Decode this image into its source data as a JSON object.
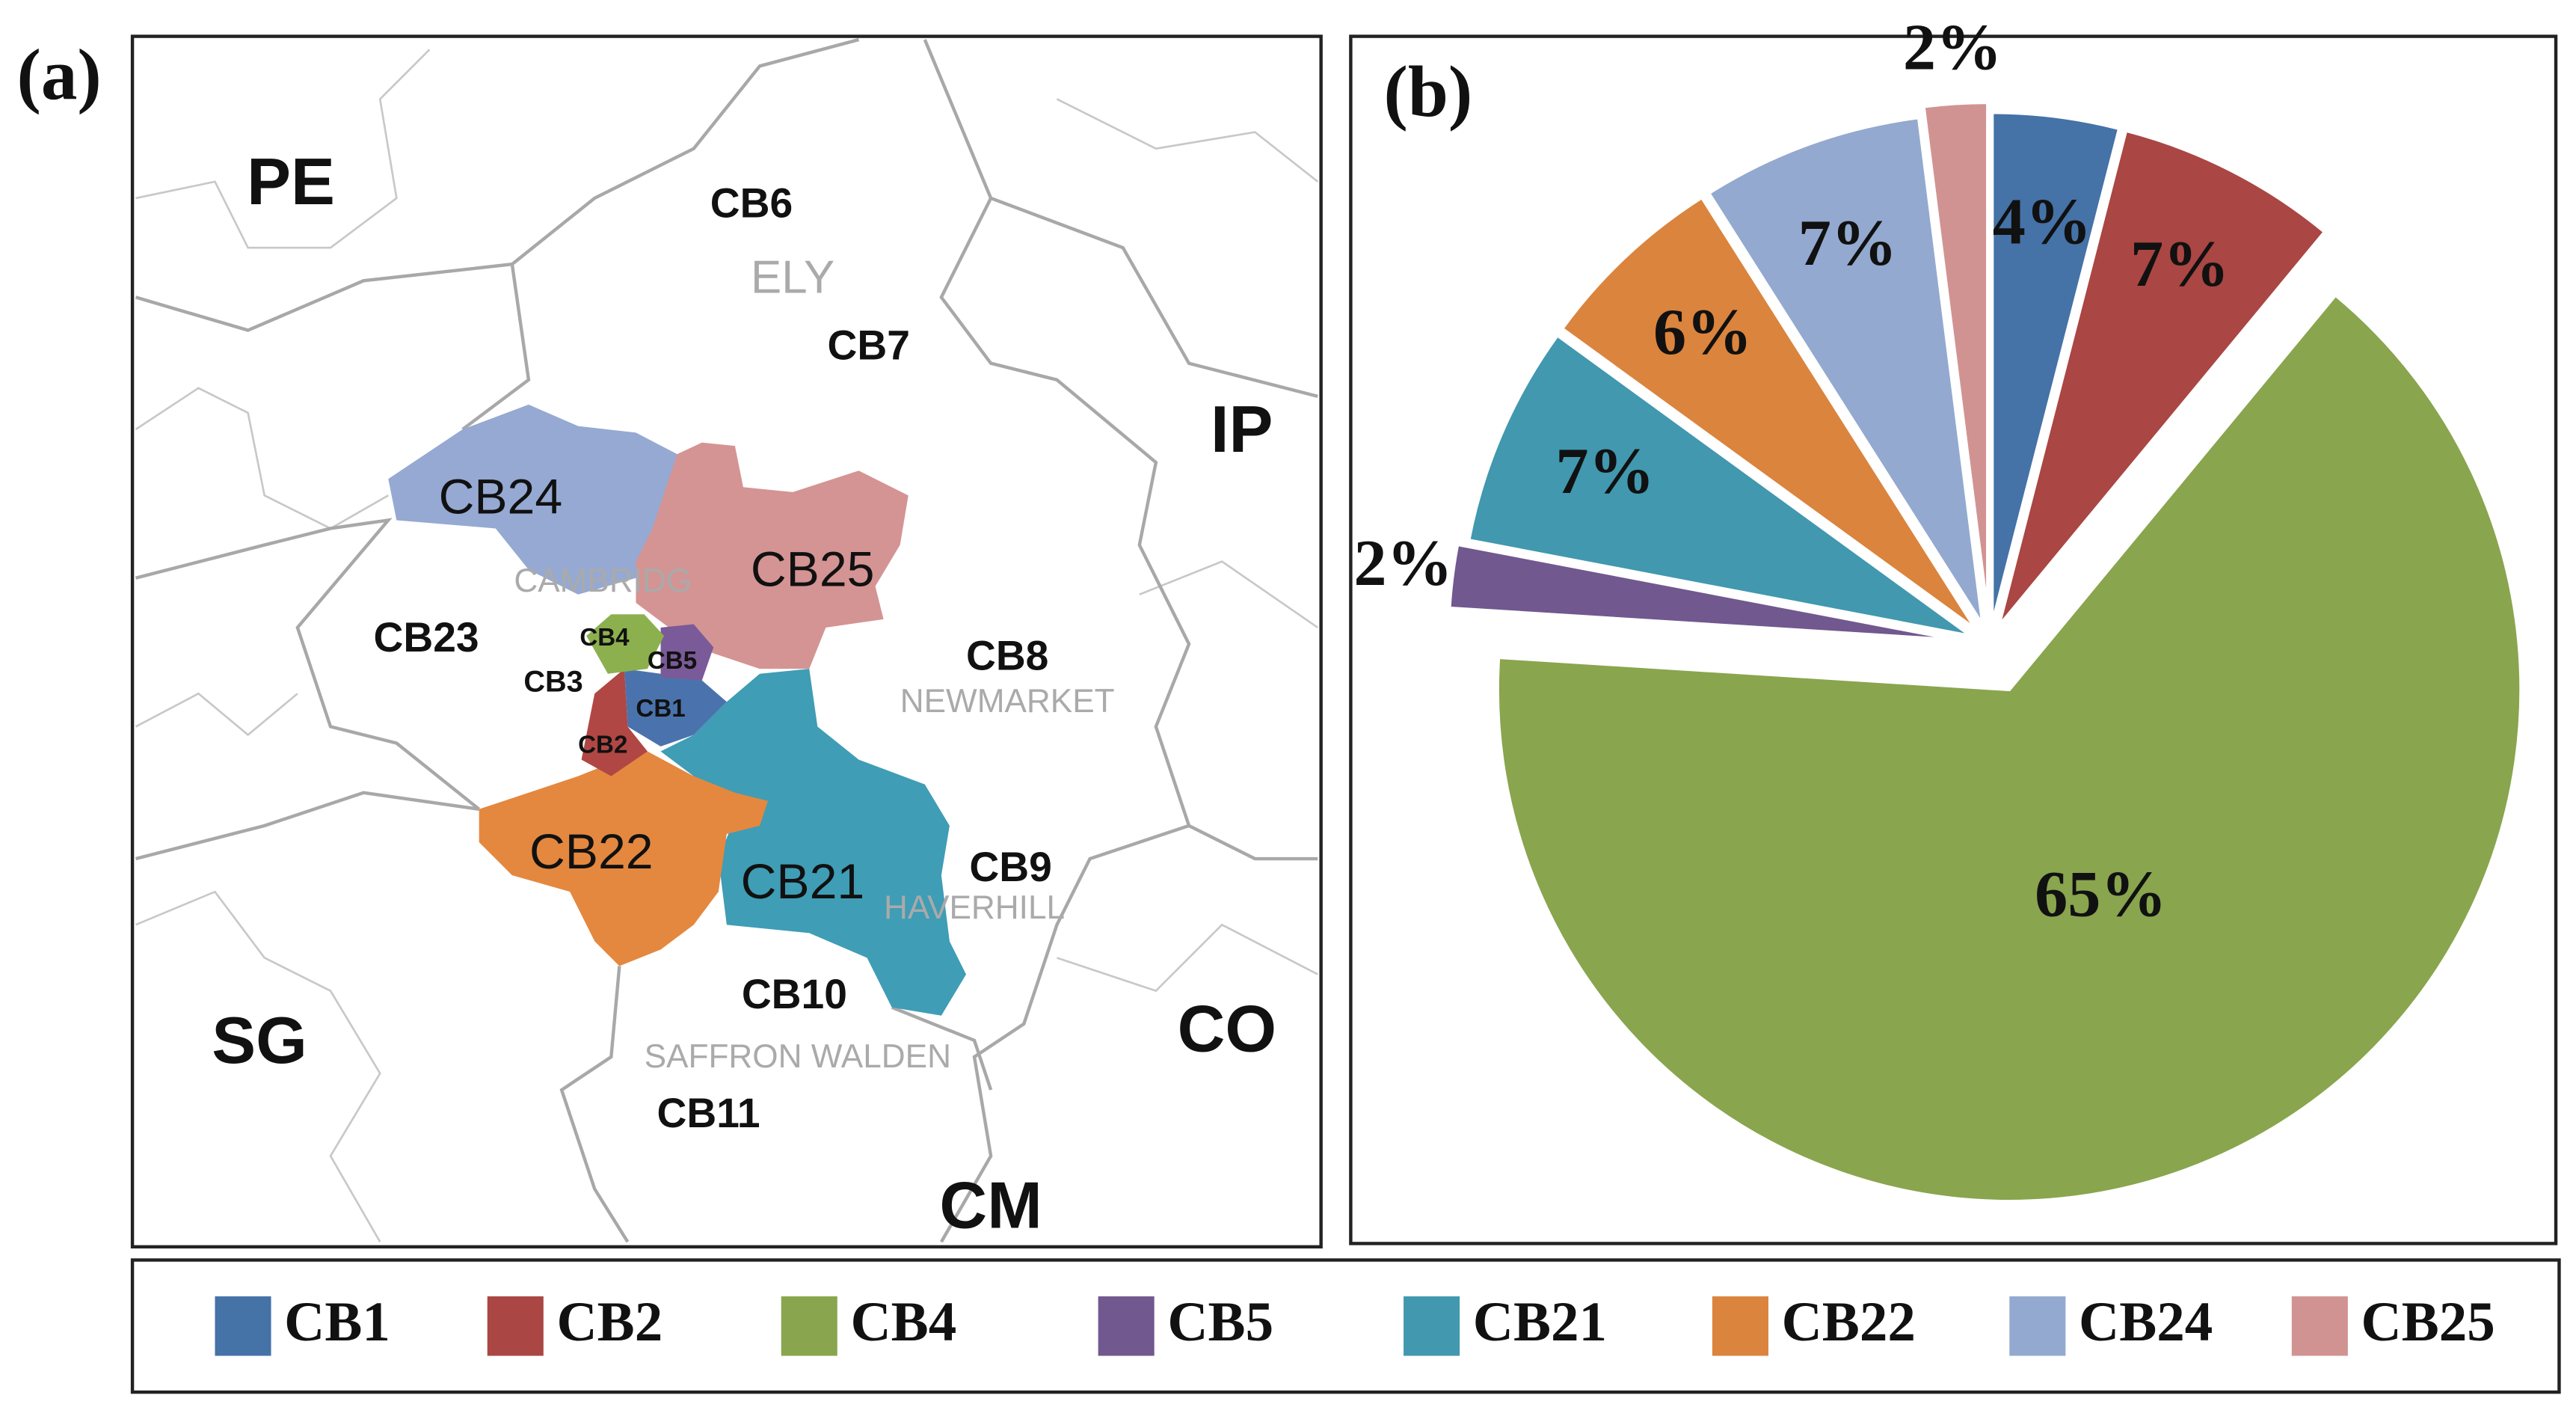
{
  "map": {
    "panel_label": "(a)",
    "labels": [
      "PE",
      "CB6",
      "ELY",
      "CB7",
      "IP",
      "CB24",
      "CAMBRIDG",
      "CB25",
      "CB23",
      "CB4",
      "CB5",
      "CB3",
      "CB1",
      "CB8",
      "NEWMARKET",
      "CB2",
      "CB22",
      "CB21",
      "CB9",
      "HAVERHILL",
      "CB10",
      "SG",
      "CO",
      "SAFFRON WALDEN",
      "CB11",
      "CM"
    ]
  },
  "chart_data": {
    "type": "pie",
    "panel_label": "(b)",
    "categories": [
      "CB1",
      "CB2",
      "CB4",
      "CB5",
      "CB21",
      "CB22",
      "CB24",
      "CB25"
    ],
    "values": [
      4,
      7,
      65,
      2,
      7,
      6,
      7,
      2
    ],
    "value_labels": [
      "4%",
      "7%",
      "65%",
      "2%",
      "7%",
      "6%",
      "7%",
      "2%"
    ],
    "colors": [
      "#4572a7",
      "#aa4643",
      "#89a54e",
      "#71588f",
      "#4198af",
      "#db843d",
      "#93a9cf",
      "#d19392"
    ]
  }
}
